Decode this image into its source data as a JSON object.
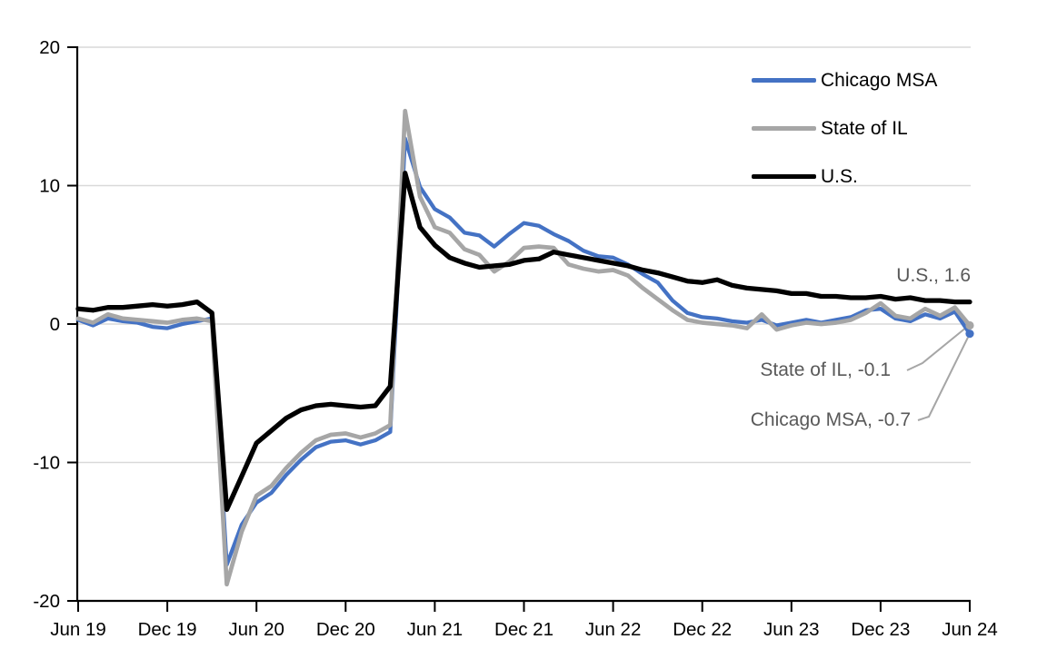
{
  "chart_data": {
    "type": "line",
    "title": "",
    "xlabel": "",
    "ylabel": "",
    "x_tick_labels": [
      "Jun 19",
      "Dec 19",
      "Jun 20",
      "Dec 20",
      "Jun 21",
      "Dec 21",
      "Jun 22",
      "Dec 22",
      "Jun 23",
      "Dec 23",
      "Jun 24"
    ],
    "points_per_tick": 6,
    "n_points": 61,
    "ylim": [
      -20,
      20
    ],
    "y_ticks": [
      -20,
      -10,
      0,
      10,
      20
    ],
    "y_tick_labels": [
      "-20",
      "-10",
      "0",
      "10",
      "20"
    ],
    "grid_y_values": [
      -10,
      0,
      10,
      20
    ],
    "grid": true,
    "legend_position": "top-right",
    "series": [
      {
        "name": "Chicago MSA",
        "color": "#4472C4",
        "end_marker": true,
        "end_value": -0.7,
        "values": [
          0.3,
          -0.1,
          0.4,
          0.2,
          0.1,
          -0.2,
          -0.3,
          0.0,
          0.2,
          0.4,
          -17.4,
          -14.5,
          -12.9,
          -12.2,
          -10.9,
          -9.8,
          -8.9,
          -8.5,
          -8.4,
          -8.7,
          -8.4,
          -7.8,
          13.4,
          9.9,
          8.3,
          7.7,
          6.6,
          6.4,
          5.6,
          6.5,
          7.3,
          7.1,
          6.5,
          6.0,
          5.3,
          4.9,
          4.8,
          4.3,
          3.6,
          3.0,
          1.7,
          0.8,
          0.5,
          0.4,
          0.2,
          0.1,
          0.3,
          -0.1,
          0.1,
          0.3,
          0.1,
          0.3,
          0.5,
          1.0,
          1.1,
          0.4,
          0.2,
          0.7,
          0.4,
          0.9,
          -0.7
        ]
      },
      {
        "name": "State of IL",
        "color": "#A6A6A6",
        "end_marker": true,
        "end_value": -0.1,
        "values": [
          0.4,
          0.1,
          0.7,
          0.4,
          0.3,
          0.2,
          0.1,
          0.3,
          0.4,
          0.2,
          -18.8,
          -15.0,
          -12.4,
          -11.7,
          -10.4,
          -9.3,
          -8.4,
          -8.0,
          -7.9,
          -8.2,
          -7.9,
          -7.3,
          15.4,
          9.2,
          7.0,
          6.6,
          5.4,
          5.0,
          3.8,
          4.5,
          5.5,
          5.6,
          5.5,
          4.3,
          4.0,
          3.8,
          3.9,
          3.5,
          2.6,
          1.8,
          1.0,
          0.3,
          0.1,
          0.0,
          -0.1,
          -0.3,
          0.7,
          -0.4,
          -0.1,
          0.1,
          0.0,
          0.1,
          0.3,
          0.8,
          1.5,
          0.6,
          0.4,
          1.1,
          0.6,
          1.2,
          -0.1
        ]
      },
      {
        "name": "U.S.",
        "color": "#000000",
        "end_marker": false,
        "end_value": 1.6,
        "values": [
          1.1,
          1.0,
          1.2,
          1.2,
          1.3,
          1.4,
          1.3,
          1.4,
          1.6,
          0.8,
          -13.4,
          -11.0,
          -8.6,
          -7.7,
          -6.8,
          -6.2,
          -5.9,
          -5.8,
          -5.9,
          -6.0,
          -5.9,
          -4.5,
          10.9,
          7.0,
          5.7,
          4.8,
          4.4,
          4.1,
          4.2,
          4.3,
          4.6,
          4.7,
          5.2,
          5.0,
          4.8,
          4.6,
          4.4,
          4.2,
          3.9,
          3.7,
          3.4,
          3.1,
          3.0,
          3.2,
          2.8,
          2.6,
          2.5,
          2.4,
          2.2,
          2.2,
          2.0,
          2.0,
          1.9,
          1.9,
          2.0,
          1.8,
          1.9,
          1.7,
          1.7,
          1.6,
          1.6
        ]
      }
    ]
  },
  "annotations": {
    "us": {
      "text": "U.S., 1.6",
      "color": "#595959"
    },
    "il": {
      "text": "State of IL, -0.1",
      "color": "#595959"
    },
    "chicago": {
      "text": "Chicago MSA, -0.7",
      "color": "#595959"
    }
  },
  "colors": {
    "background": "#FFFFFF",
    "gridline": "#D9D9D9",
    "axis": "#000000",
    "tick_text": "#000000",
    "leader_line": "#A6A6A6"
  }
}
